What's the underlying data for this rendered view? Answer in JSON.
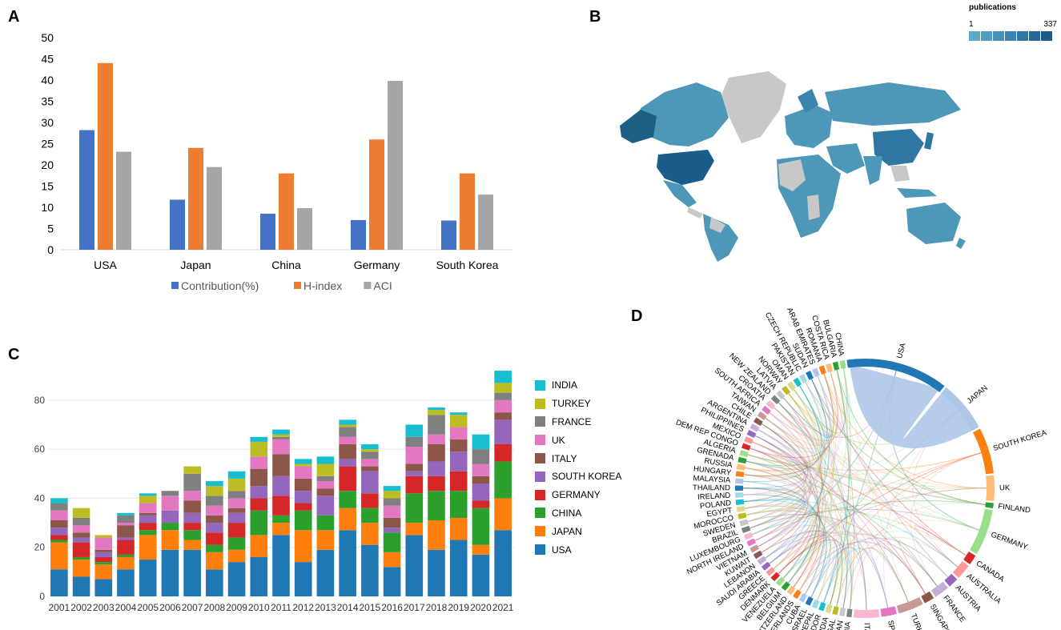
{
  "panels": {
    "a": "A",
    "b": "B",
    "c": "C",
    "d": "D"
  },
  "chart_data": [
    {
      "panel": "A",
      "type": "bar",
      "categories": [
        "USA",
        "Japan",
        "China",
        "Germany",
        "South Korea"
      ],
      "series": [
        {
          "name": "Contribution(%)",
          "color": "#4472c4",
          "values": [
            28.2,
            11.8,
            8.5,
            7.0,
            6.9
          ]
        },
        {
          "name": "H-index",
          "color": "#ed7d31",
          "values": [
            44,
            24,
            18,
            26,
            18
          ]
        },
        {
          "name": "ACI",
          "color": "#a5a5a5",
          "values": [
            23.1,
            19.5,
            9.8,
            39.8,
            13.0
          ]
        }
      ],
      "ylim": [
        0,
        50
      ],
      "yticks": [
        0,
        5,
        10,
        15,
        20,
        25,
        30,
        35,
        40,
        45,
        50
      ],
      "legend": "bottom"
    },
    {
      "panel": "C",
      "type": "bar",
      "stacked": true,
      "categories": [
        "2001",
        "2002",
        "2003",
        "2004",
        "2005",
        "2006",
        "2007",
        "2008",
        "2009",
        "2010",
        "2011",
        "2012",
        "2013",
        "2014",
        "2015",
        "2016",
        "2017",
        "2018",
        "2019",
        "2020",
        "2021"
      ],
      "series": [
        {
          "name": "USA",
          "color": "#1f77b4",
          "values": [
            11,
            8,
            7,
            11,
            15,
            19,
            19,
            11,
            14,
            16,
            25,
            14,
            19,
            27,
            21,
            12,
            25,
            19,
            23,
            17,
            27
          ]
        },
        {
          "name": "JAPAN",
          "color": "#ff7f0e",
          "values": [
            11,
            7,
            6,
            5,
            10,
            8,
            4,
            7,
            5,
            9,
            5,
            13,
            8,
            9,
            9,
            6,
            5,
            12,
            9,
            4,
            13
          ]
        },
        {
          "name": "CHINA",
          "color": "#2ca02c",
          "values": [
            1,
            1,
            1,
            1,
            2,
            3,
            4,
            3,
            5,
            10,
            3,
            8,
            6,
            7,
            6,
            8,
            12,
            12,
            11,
            15,
            15
          ]
        },
        {
          "name": "GERMANY",
          "color": "#d62728",
          "values": [
            2,
            6,
            2,
            6,
            3,
            0,
            3,
            5,
            6,
            5,
            8,
            3,
            0,
            10,
            6,
            0,
            7,
            6,
            8,
            3,
            7
          ]
        },
        {
          "name": "SOUTH KOREA",
          "color": "#9467bd",
          "values": [
            3,
            2,
            2,
            1,
            3,
            5,
            4,
            4,
            4,
            5,
            8,
            5,
            8,
            3,
            9,
            2,
            2,
            6,
            8,
            7,
            10
          ]
        },
        {
          "name": "ITALY",
          "color": "#8c564b",
          "values": [
            3,
            2,
            1,
            5,
            1,
            0,
            5,
            3,
            2,
            7,
            9,
            5,
            3,
            6,
            2,
            4,
            3,
            7,
            5,
            3,
            3
          ]
        },
        {
          "name": "UK",
          "color": "#e377c2",
          "values": [
            4,
            3,
            5,
            1,
            4,
            6,
            4,
            4,
            4,
            5,
            6,
            5,
            3,
            3,
            3,
            5,
            7,
            4,
            5,
            5,
            5
          ]
        },
        {
          "name": "FRANCE",
          "color": "#7f7f7f",
          "values": [
            3,
            3,
            0,
            3,
            0,
            2,
            7,
            4,
            3,
            0,
            1,
            0,
            2,
            4,
            3,
            3,
            4,
            8,
            0,
            6,
            3
          ]
        },
        {
          "name": "TURKEY",
          "color": "#bcbd22",
          "values": [
            0,
            4,
            1,
            0,
            3,
            0,
            3,
            4,
            5,
            6,
            1,
            1,
            5,
            1,
            1,
            3,
            0,
            2,
            5,
            0,
            4
          ]
        },
        {
          "name": "INDIA",
          "color": "#17becf",
          "values": [
            2,
            0,
            0,
            1,
            1,
            0,
            0,
            2,
            3,
            2,
            2,
            2,
            3,
            2,
            2,
            2,
            5,
            1,
            1,
            6,
            5
          ]
        }
      ],
      "ylim": [
        0,
        93
      ],
      "yticks": [
        0,
        20,
        40,
        60,
        80
      ],
      "legend": "right"
    }
  ],
  "map_b": {
    "legend_title": "publications",
    "legend_min": "1",
    "legend_max": "337",
    "scale_colors": [
      "#5fa9c8",
      "#4f9dc0",
      "#4591b8",
      "#3a84ae",
      "#2f77a3",
      "#256a97",
      "#1b5c8a"
    ]
  },
  "chord_d": {
    "labels": [
      "USA",
      "JAPAN",
      "SOUTH KOREA",
      "UK",
      "FINLAND",
      "GERMANY",
      "CANADA",
      "AUSTRALIA",
      "AUSTRIA",
      "FRANCE",
      "SINGAPORE",
      "TURKEY",
      "SPAIN",
      "ITALY",
      "SERBIA",
      "IRAN",
      "PORTUGAL",
      "INDIA",
      "ECUADOR",
      "NEPAL",
      "ISRAEL",
      "CUBA",
      "NETHERLANDS",
      "SWITZERLAND",
      "BELGIUM",
      "VENEZUELA",
      "DENMARK",
      "GREECE",
      "SAUDI ARABIA",
      "LEBANON",
      "KUWAIT",
      "VIETNAM",
      "NORTH IRELAND",
      "LUXEMBOURG",
      "BRAZIL",
      "SWEDEN",
      "MOROCCO",
      "EGYPT",
      "POLAND",
      "IRELAND",
      "THAILAND",
      "MALAYSIA",
      "HUNGARY",
      "RUSSIA",
      "GRENADA",
      "ALGERIA",
      "DEM REP CONGO",
      "MEXICO",
      "PHILIPPINES",
      "ARGENTINA",
      "CHILE",
      "TAIWAN",
      "SOUTH AFRICA",
      "CROATIA",
      "NEW ZEALAND",
      "LATVIA",
      "NORWAY",
      "OMAN",
      "PAKISTAN",
      "CZECH REPUBLIC",
      "SUDAN",
      "ARAB EMIRATES",
      "ROMANIA",
      "COSTA RICA",
      "BULGARIA",
      "CHINA"
    ]
  }
}
